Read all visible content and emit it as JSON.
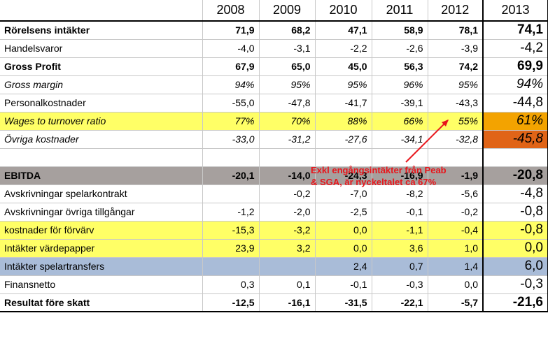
{
  "years": [
    "2008",
    "2009",
    "2010",
    "2011",
    "2012",
    "2013"
  ],
  "rows": [
    {
      "label": "Rörelsens intäkter",
      "values": [
        "71,9",
        "68,2",
        "47,1",
        "58,9",
        "78,1",
        "74,1"
      ]
    },
    {
      "label": "Handelsvaror",
      "values": [
        "-4,0",
        "-3,1",
        "-2,2",
        "-2,6",
        "-3,9",
        "-4,2"
      ]
    },
    {
      "label": "Gross Profit",
      "values": [
        "67,9",
        "65,0",
        "45,0",
        "56,3",
        "74,2",
        "69,9"
      ]
    },
    {
      "label": "Gross margin",
      "values": [
        "94%",
        "95%",
        "95%",
        "96%",
        "95%",
        "94%"
      ]
    },
    {
      "label": "Personalkostnader",
      "values": [
        "-55,0",
        "-47,8",
        "-41,7",
        "-39,1",
        "-43,3",
        "-44,8"
      ]
    },
    {
      "label": "Wages to turnover ratio",
      "values": [
        "77%",
        "70%",
        "88%",
        "66%",
        "55%",
        "61%"
      ]
    },
    {
      "label": "Övriga kostnader",
      "values": [
        "-33,0",
        "-31,2",
        "-27,6",
        "-34,1",
        "-32,8",
        "-45,8"
      ]
    },
    {
      "label": "",
      "values": [
        "",
        "",
        "",
        "",
        "",
        ""
      ]
    },
    {
      "label": "EBITDA",
      "values": [
        "-20,1",
        "-14,0",
        "-24,3",
        "-16,9",
        "-1,9",
        "-20,8"
      ]
    },
    {
      "label": "Avskrivningar spelarkontrakt",
      "values": [
        "",
        "-0,2",
        "-7,0",
        "-8,2",
        "-5,6",
        "-4,8"
      ]
    },
    {
      "label": "Avskrivningar övriga tillgångar",
      "values": [
        "-1,2",
        "-2,0",
        "-2,5",
        "-0,1",
        "-0,2",
        "-0,8"
      ]
    },
    {
      "label": "kostnader för förvärv",
      "values": [
        "-15,3",
        "-3,2",
        "0,0",
        "-1,1",
        "-0,4",
        "-0,8"
      ]
    },
    {
      "label": "Intäkter värdepapper",
      "values": [
        "23,9",
        "3,2",
        "0,0",
        "3,6",
        "1,0",
        "0,0"
      ]
    },
    {
      "label": "Intäkter spelartransfers",
      "values": [
        "",
        "",
        "2,4",
        "0,7",
        "1,4",
        "6,0"
      ]
    },
    {
      "label": "Finansnetto",
      "values": [
        "0,3",
        "0,1",
        "-0,1",
        "-0,3",
        "0,0",
        "-0,3"
      ]
    },
    {
      "label": "Resultat före skatt",
      "values": [
        "-12,5",
        "-16,1",
        "-31,5",
        "-22,1",
        "-5,7",
        "-21,6"
      ]
    }
  ],
  "annotation": {
    "line1": "Exkl engångsintäkter från Peab",
    "line2": "& SGA, är nyckeltalet ca 67%"
  },
  "colors": {
    "yellow_row": "#ffff66",
    "grey_row": "#a6a09e",
    "blue_row": "#a9bcd8",
    "orange_cell": "#f3a300",
    "red_cell": "#e06417",
    "annotation_text": "#e8151b"
  }
}
